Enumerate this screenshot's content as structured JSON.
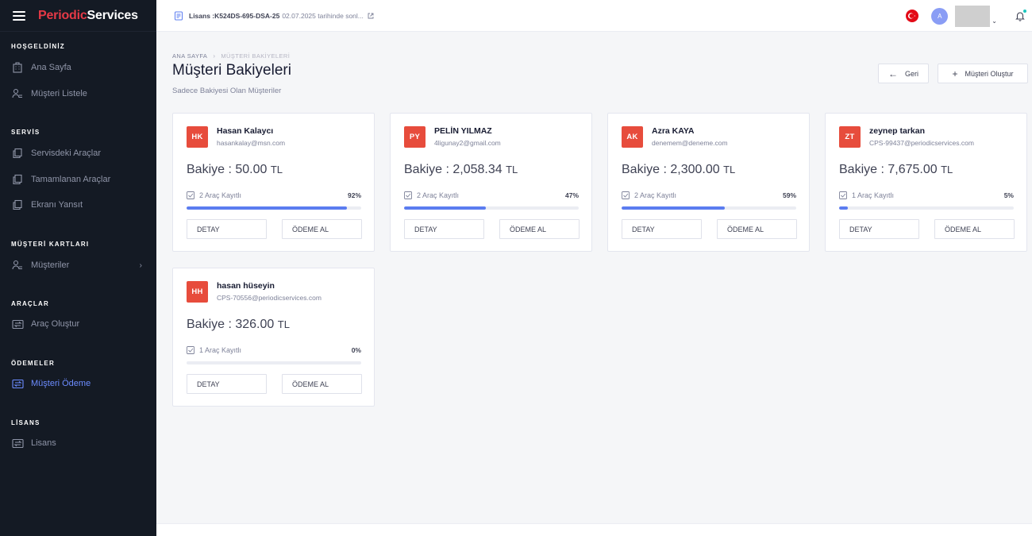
{
  "brand": {
    "part1": "Periodic",
    "part2": "Services"
  },
  "topbar": {
    "license_key": "Lisans :K524DS-695-DSA-25",
    "license_expiry": "02.07.2025 tarihinde sonl...",
    "avatar_initial": "A"
  },
  "sidebar": {
    "sections": [
      {
        "title": "HOŞGELDİNİZ",
        "items": [
          {
            "label": "Ana Sayfa",
            "icon": "building-icon"
          },
          {
            "label": "Müşteri Listele",
            "icon": "user-list-icon"
          }
        ]
      },
      {
        "title": "SERVİS",
        "items": [
          {
            "label": "Servisdeki Araçlar",
            "icon": "copy-icon"
          },
          {
            "label": "Tamamlanan Araçlar",
            "icon": "copy-icon"
          },
          {
            "label": "Ekranı Yansıt",
            "icon": "copy-icon"
          }
        ]
      },
      {
        "title": "MÜŞTERİ KARTLARI",
        "items": [
          {
            "label": "Müşteriler",
            "icon": "user-list-icon"
          }
        ]
      },
      {
        "title": "ARAÇLAR",
        "items": [
          {
            "label": "Araç Oluştur",
            "icon": "exchange-icon"
          }
        ]
      },
      {
        "title": "ÖDEMELER",
        "items": [
          {
            "label": "Müşteri Ödeme",
            "icon": "exchange-icon"
          }
        ]
      },
      {
        "title": "LİSANS",
        "items": [
          {
            "label": "Lisans",
            "icon": "exchange-icon"
          }
        ]
      }
    ]
  },
  "header": {
    "breadcrumb_home": "ANA SAYFA",
    "breadcrumb_current": "MÜŞTERİ BAKİYELERİ",
    "title": "Müşteri Bakiyeleri",
    "subtitle": "Sadece Bakiyesi Olan Müşteriler",
    "back_label": "Geri",
    "create_label": "Müşteri Oluştur"
  },
  "customers": [
    {
      "initials": "HK",
      "name": "Hasan Kalaycı",
      "email": "hasankalay@msn.com",
      "balance_label": "Bakiye : 50.00",
      "currency": "TL",
      "vehicles": "2 Araç Kayıtlı",
      "percent": "92%",
      "progress": 92,
      "detail_label": "DETAY",
      "pay_label": "ÖDEME AL"
    },
    {
      "initials": "PY",
      "name": "PELİN YILMAZ",
      "email": "4ligunay2@gmail.com",
      "balance_label": "Bakiye : 2,058.34",
      "currency": "TL",
      "vehicles": "2 Araç Kayıtlı",
      "percent": "47%",
      "progress": 47,
      "detail_label": "DETAY",
      "pay_label": "ÖDEME AL"
    },
    {
      "initials": "AK",
      "name": "Azra KAYA",
      "email": "denemem@deneme.com",
      "balance_label": "Bakiye : 2,300.00",
      "currency": "TL",
      "vehicles": "2 Araç Kayıtlı",
      "percent": "59%",
      "progress": 59,
      "detail_label": "DETAY",
      "pay_label": "ÖDEME AL"
    },
    {
      "initials": "ZT",
      "name": "zeynep tarkan",
      "email": "CPS-99437@periodicservices.com",
      "balance_label": "Bakiye : 7,675.00",
      "currency": "TL",
      "vehicles": "1 Araç Kayıtlı",
      "percent": "5%",
      "progress": 5,
      "detail_label": "DETAY",
      "pay_label": "ÖDEME AL"
    },
    {
      "initials": "HH",
      "name": "hasan hüseyin",
      "email": "CPS-70556@periodicservices.com",
      "balance_label": "Bakiye : 326.00",
      "currency": "TL",
      "vehicles": "1 Araç Kayıtlı",
      "percent": "0%",
      "progress": 0,
      "detail_label": "DETAY",
      "pay_label": "ÖDEME AL"
    }
  ],
  "colors": {
    "accent": "#5b7cf0",
    "badge": "#e74c3c",
    "sidebar_bg": "#141a24",
    "active_nav": "#6c8cff"
  }
}
